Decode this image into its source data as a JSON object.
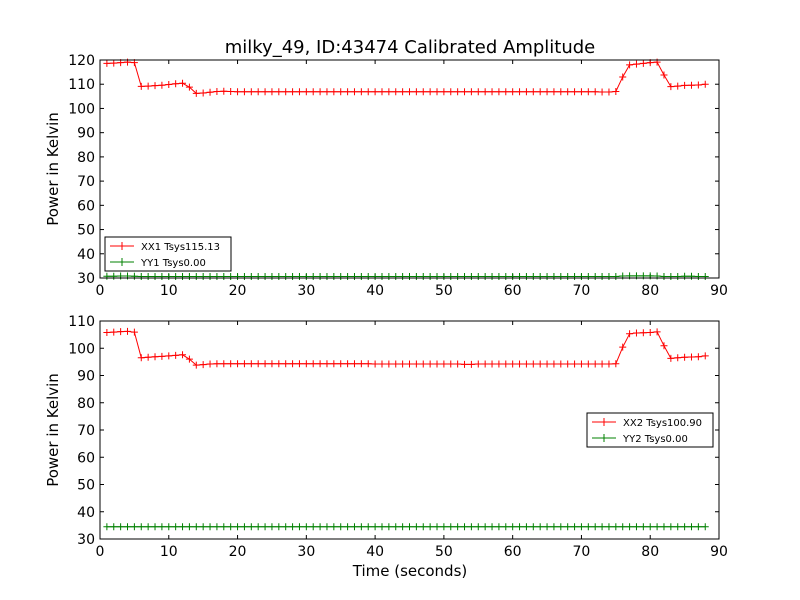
{
  "chart_data": [
    {
      "type": "line",
      "title": "milky_49, ID:43474 Calibrated Amplitude",
      "xlabel": "",
      "ylabel": "Power in Kelvin",
      "xlim": [
        0,
        90
      ],
      "ylim": [
        30,
        120
      ],
      "xticks": [
        "0",
        "10",
        "20",
        "30",
        "40",
        "50",
        "60",
        "70",
        "80",
        "90"
      ],
      "yticks": [
        "30",
        "40",
        "50",
        "60",
        "70",
        "80",
        "90",
        "100",
        "110",
        "120"
      ],
      "grid": false,
      "legend_position": "lower-left",
      "series": [
        {
          "name": "XX1 Tsys115.13",
          "color": "#ff0000",
          "marker": "plus",
          "x": [
            1,
            2,
            3,
            4,
            5,
            6,
            7,
            8,
            9,
            10,
            11,
            12,
            13,
            14,
            15,
            16,
            17,
            18,
            19,
            20,
            21,
            22,
            23,
            24,
            25,
            26,
            27,
            28,
            29,
            30,
            31,
            32,
            33,
            34,
            35,
            36,
            37,
            38,
            39,
            40,
            41,
            42,
            43,
            44,
            45,
            46,
            47,
            48,
            49,
            50,
            51,
            52,
            53,
            54,
            55,
            56,
            57,
            58,
            59,
            60,
            61,
            62,
            63,
            64,
            65,
            66,
            67,
            68,
            69,
            70,
            71,
            72,
            73,
            74,
            75,
            76,
            77,
            78,
            79,
            80,
            81,
            82,
            83,
            84,
            85,
            86,
            87,
            88
          ],
          "y": [
            118.6,
            118.7,
            118.9,
            119.1,
            118.9,
            109.1,
            109.2,
            109.4,
            109.6,
            109.9,
            110.2,
            110.4,
            108.8,
            106.2,
            106.4,
            106.7,
            107.0,
            107.1,
            107.0,
            106.9,
            106.9,
            106.9,
            106.9,
            106.9,
            106.9,
            106.9,
            106.9,
            106.9,
            106.9,
            106.9,
            106.9,
            106.9,
            106.9,
            106.9,
            106.9,
            106.9,
            106.9,
            106.9,
            106.9,
            106.9,
            106.9,
            106.9,
            106.9,
            106.9,
            106.9,
            106.9,
            106.9,
            106.9,
            106.9,
            106.9,
            106.9,
            106.9,
            106.9,
            106.9,
            106.9,
            106.9,
            106.9,
            106.9,
            106.9,
            106.9,
            106.9,
            106.9,
            106.9,
            106.9,
            106.9,
            106.9,
            106.9,
            106.9,
            106.9,
            106.9,
            106.9,
            106.9,
            106.8,
            106.8,
            107.0,
            113.0,
            118.0,
            118.3,
            118.6,
            118.9,
            119.1,
            113.8,
            109.0,
            109.2,
            109.5,
            109.6,
            109.7,
            110.0
          ]
        },
        {
          "name": "YY1 Tsys0.00",
          "color": "#008000",
          "marker": "plus",
          "x": [
            1,
            2,
            3,
            4,
            5,
            6,
            7,
            8,
            9,
            10,
            11,
            12,
            13,
            14,
            15,
            16,
            17,
            18,
            19,
            20,
            21,
            22,
            23,
            24,
            25,
            26,
            27,
            28,
            29,
            30,
            31,
            32,
            33,
            34,
            35,
            36,
            37,
            38,
            39,
            40,
            41,
            42,
            43,
            44,
            45,
            46,
            47,
            48,
            49,
            50,
            51,
            52,
            53,
            54,
            55,
            56,
            57,
            58,
            59,
            60,
            61,
            62,
            63,
            64,
            65,
            66,
            67,
            68,
            69,
            70,
            71,
            72,
            73,
            74,
            75,
            76,
            77,
            78,
            79,
            80,
            81,
            82,
            83,
            84,
            85,
            86,
            87,
            88
          ],
          "y": [
            30.7,
            30.7,
            30.8,
            30.8,
            30.7,
            30.6,
            30.6,
            30.6,
            30.6,
            30.6,
            30.6,
            30.6,
            30.6,
            30.6,
            30.6,
            30.6,
            30.6,
            30.6,
            30.6,
            30.6,
            30.6,
            30.6,
            30.6,
            30.6,
            30.6,
            30.6,
            30.6,
            30.6,
            30.6,
            30.6,
            30.6,
            30.6,
            30.6,
            30.6,
            30.6,
            30.6,
            30.6,
            30.6,
            30.6,
            30.6,
            30.6,
            30.6,
            30.6,
            30.6,
            30.6,
            30.6,
            30.6,
            30.6,
            30.6,
            30.6,
            30.6,
            30.6,
            30.6,
            30.6,
            30.6,
            30.6,
            30.6,
            30.6,
            30.6,
            30.6,
            30.6,
            30.6,
            30.6,
            30.6,
            30.6,
            30.6,
            30.6,
            30.6,
            30.6,
            30.6,
            30.6,
            30.6,
            30.6,
            30.6,
            30.6,
            30.8,
            30.9,
            30.9,
            30.9,
            30.9,
            30.8,
            30.6,
            30.6,
            30.6,
            30.7,
            30.7,
            30.6,
            30.6
          ]
        }
      ]
    },
    {
      "type": "line",
      "title": "",
      "xlabel": "Time (seconds)",
      "ylabel": "Power in Kelvin",
      "xlim": [
        0,
        90
      ],
      "ylim": [
        30,
        110
      ],
      "xticks": [
        "0",
        "10",
        "20",
        "30",
        "40",
        "50",
        "60",
        "70",
        "80",
        "90"
      ],
      "yticks": [
        "30",
        "40",
        "50",
        "60",
        "70",
        "80",
        "90",
        "100",
        "110"
      ],
      "grid": false,
      "legend_position": "center-right",
      "series": [
        {
          "name": "XX2 Tsys100.90",
          "color": "#ff0000",
          "marker": "plus",
          "x": [
            1,
            2,
            3,
            4,
            5,
            6,
            7,
            8,
            9,
            10,
            11,
            12,
            13,
            14,
            15,
            16,
            17,
            18,
            19,
            20,
            21,
            22,
            23,
            24,
            25,
            26,
            27,
            28,
            29,
            30,
            31,
            32,
            33,
            34,
            35,
            36,
            37,
            38,
            39,
            40,
            41,
            42,
            43,
            44,
            45,
            46,
            47,
            48,
            49,
            50,
            51,
            52,
            53,
            54,
            55,
            56,
            57,
            58,
            59,
            60,
            61,
            62,
            63,
            64,
            65,
            66,
            67,
            68,
            69,
            70,
            71,
            72,
            73,
            74,
            75,
            76,
            77,
            78,
            79,
            80,
            81,
            82,
            83,
            84,
            85,
            86,
            87,
            88
          ],
          "y": [
            105.8,
            105.9,
            106.1,
            106.2,
            105.9,
            96.5,
            96.7,
            96.9,
            97.0,
            97.2,
            97.4,
            97.6,
            96.0,
            93.8,
            94.0,
            94.2,
            94.3,
            94.3,
            94.3,
            94.3,
            94.3,
            94.3,
            94.3,
            94.3,
            94.3,
            94.3,
            94.3,
            94.3,
            94.3,
            94.3,
            94.3,
            94.3,
            94.3,
            94.3,
            94.3,
            94.3,
            94.3,
            94.3,
            94.3,
            94.2,
            94.2,
            94.2,
            94.2,
            94.2,
            94.2,
            94.2,
            94.2,
            94.2,
            94.2,
            94.2,
            94.2,
            94.2,
            94.1,
            94.1,
            94.2,
            94.2,
            94.2,
            94.2,
            94.2,
            94.2,
            94.2,
            94.2,
            94.2,
            94.2,
            94.2,
            94.2,
            94.2,
            94.2,
            94.2,
            94.2,
            94.2,
            94.2,
            94.2,
            94.2,
            94.3,
            100.4,
            105.3,
            105.6,
            105.7,
            105.8,
            106.0,
            100.9,
            96.3,
            96.5,
            96.7,
            96.8,
            96.9,
            97.2
          ]
        },
        {
          "name": "YY2 Tsys0.00",
          "color": "#008000",
          "marker": "plus",
          "x": [
            1,
            2,
            3,
            4,
            5,
            6,
            7,
            8,
            9,
            10,
            11,
            12,
            13,
            14,
            15,
            16,
            17,
            18,
            19,
            20,
            21,
            22,
            23,
            24,
            25,
            26,
            27,
            28,
            29,
            30,
            31,
            32,
            33,
            34,
            35,
            36,
            37,
            38,
            39,
            40,
            41,
            42,
            43,
            44,
            45,
            46,
            47,
            48,
            49,
            50,
            51,
            52,
            53,
            54,
            55,
            56,
            57,
            58,
            59,
            60,
            61,
            62,
            63,
            64,
            65,
            66,
            67,
            68,
            69,
            70,
            71,
            72,
            73,
            74,
            75,
            76,
            77,
            78,
            79,
            80,
            81,
            82,
            83,
            84,
            85,
            86,
            87,
            88
          ],
          "y": [
            34.5,
            34.5,
            34.5,
            34.5,
            34.5,
            34.5,
            34.5,
            34.5,
            34.5,
            34.5,
            34.5,
            34.5,
            34.5,
            34.5,
            34.5,
            34.5,
            34.5,
            34.5,
            34.5,
            34.5,
            34.5,
            34.5,
            34.5,
            34.5,
            34.5,
            34.5,
            34.5,
            34.5,
            34.5,
            34.5,
            34.5,
            34.5,
            34.5,
            34.5,
            34.5,
            34.5,
            34.5,
            34.5,
            34.5,
            34.5,
            34.5,
            34.5,
            34.5,
            34.5,
            34.5,
            34.5,
            34.5,
            34.5,
            34.5,
            34.5,
            34.5,
            34.5,
            34.5,
            34.5,
            34.5,
            34.5,
            34.5,
            34.5,
            34.5,
            34.5,
            34.5,
            34.5,
            34.5,
            34.5,
            34.5,
            34.5,
            34.5,
            34.5,
            34.5,
            34.5,
            34.5,
            34.5,
            34.5,
            34.5,
            34.5,
            34.5,
            34.5,
            34.5,
            34.5,
            34.5,
            34.5,
            34.5,
            34.5,
            34.5,
            34.5,
            34.5,
            34.5,
            34.5
          ]
        }
      ]
    }
  ]
}
